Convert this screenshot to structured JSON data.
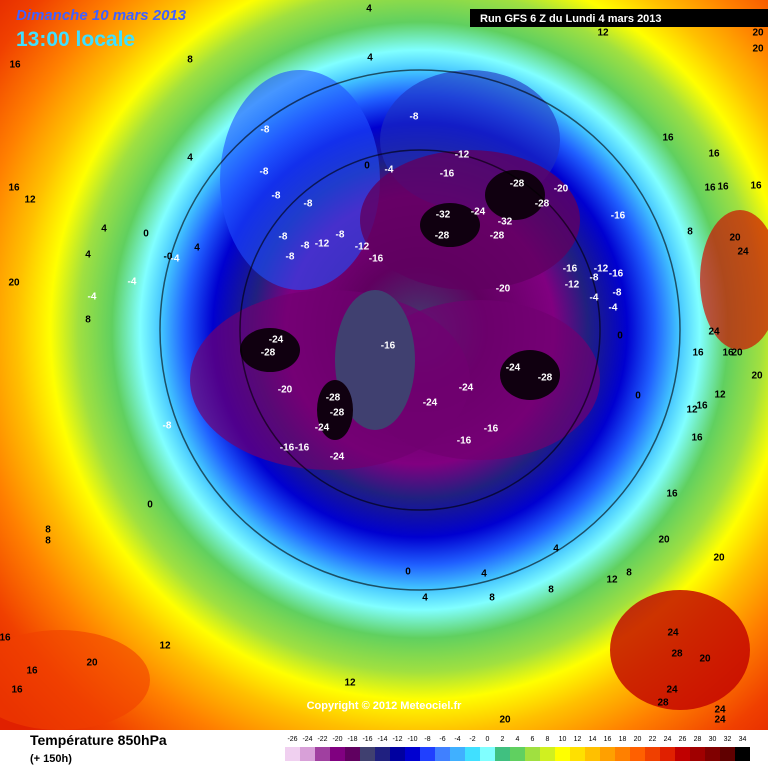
{
  "header": {
    "date": "Dimanche 10 mars 2013",
    "time": "13:00 locale",
    "run": "Run GFS 6 Z du Lundi 4 mars 2013"
  },
  "copyright": "Copyright © 2012 Meteociel.fr",
  "legend": {
    "title": "Température 850hPa",
    "subtitle": "(+ 150h)",
    "ticks": [
      -26,
      -24,
      -22,
      -20,
      -18,
      -16,
      -14,
      -12,
      -10,
      -8,
      -6,
      -4,
      -2,
      0,
      2,
      4,
      6,
      8,
      10,
      12,
      14,
      16,
      18,
      20,
      22,
      24,
      26,
      28,
      30,
      32,
      34
    ],
    "colors": [
      "#f0d0f0",
      "#d8a0d8",
      "#a040a0",
      "#800080",
      "#600060",
      "#404070",
      "#202080",
      "#0000a0",
      "#0000d0",
      "#2040ff",
      "#4080ff",
      "#40b0ff",
      "#40e0ff",
      "#80ffff",
      "#40c080",
      "#60d060",
      "#a0e040",
      "#d0f020",
      "#ffff00",
      "#ffe000",
      "#ffc000",
      "#ffa000",
      "#ff8000",
      "#ff6000",
      "#f04000",
      "#e02000",
      "#c00000",
      "#a00000",
      "#800000",
      "#600000",
      "#000000"
    ]
  },
  "map_labels": [
    "-8",
    "-8",
    "-8",
    "-8",
    "-8",
    "-8",
    "-12",
    "-8",
    "-12",
    "-16",
    "-8",
    "-8",
    "-12",
    "-16",
    "-28",
    "-20",
    "-28",
    "-32",
    "-24",
    "-32",
    "-28",
    "-28",
    "-16",
    "-20",
    "-16",
    "-12",
    "-16",
    "-12",
    "-8",
    "-4",
    "-8",
    "-4",
    "-24",
    "-28",
    "-16",
    "-20",
    "-28",
    "-28",
    "-24",
    "-16",
    "-16",
    "-24",
    "-24",
    "-28",
    "-24",
    "-24",
    "-16",
    "-16",
    "-8",
    "0",
    "-4",
    "0",
    "4",
    "4",
    "-0",
    "-4",
    "-4",
    "-4",
    "0",
    "0",
    "0",
    "0",
    "4",
    "4",
    "8",
    "4",
    "8",
    "12",
    "8",
    "16",
    "8",
    "4",
    "16",
    "12",
    "20",
    "8",
    "4",
    "8",
    "8",
    "12",
    "16",
    "16",
    "16",
    "20",
    "12",
    "20",
    "12",
    "20",
    "20",
    "16",
    "16",
    "16",
    "16",
    "16",
    "8",
    "24",
    "20",
    "24",
    "20",
    "16",
    "16",
    "12",
    "20",
    "16",
    "12",
    "16",
    "16",
    "20",
    "20",
    "24",
    "28",
    "20",
    "24",
    "28",
    "24",
    "24",
    "4",
    "4"
  ]
}
